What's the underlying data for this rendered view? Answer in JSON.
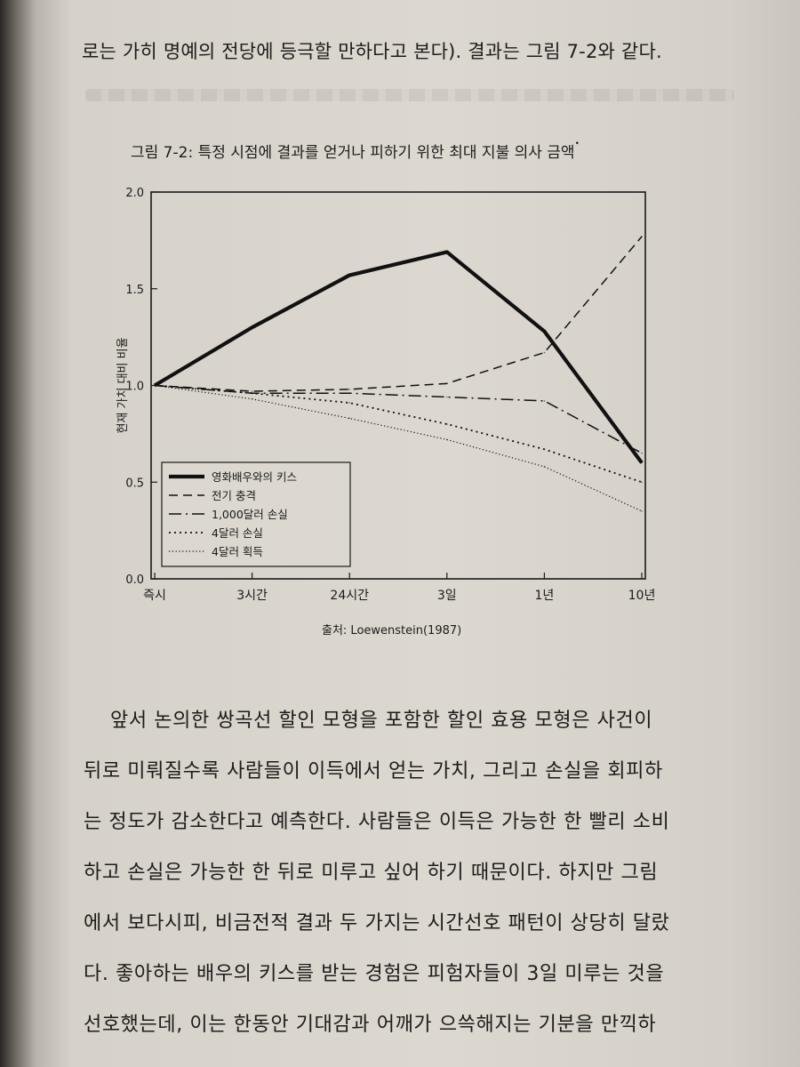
{
  "top_text": "로는 가히 명예의 전당에 등극할 만하다고 본다). 결과는 그림 7-2와 같다.",
  "figure": {
    "title": "그림 7-2: 특정 시점에 결과를 얻거나 피하기 위한 최대 지불 의사 금액",
    "title_mark": "•",
    "source": "출처: Loewenstein(1987)"
  },
  "chart_data": {
    "type": "line",
    "title": "그림 7-2: 특정 시점에 결과를 얻거나 피하기 위한 최대 지불 의사 금액",
    "xlabel": "",
    "ylabel": "현재 가치 대비 비율",
    "categories": [
      "즉시",
      "3시간",
      "24시간",
      "3일",
      "1년",
      "10년"
    ],
    "ylim": [
      0,
      2.0
    ],
    "yticks": [
      "0.0",
      "0.5",
      "1.0",
      "1.5",
      "2.0"
    ],
    "grid": false,
    "legend_position": "bottom-left",
    "series": [
      {
        "name": "영화배우와의 키스",
        "style": "thick-solid",
        "values": [
          1.0,
          1.3,
          1.57,
          1.69,
          1.28,
          0.6
        ]
      },
      {
        "name": "전기 충격",
        "style": "dashed",
        "values": [
          1.0,
          0.97,
          0.98,
          1.01,
          1.17,
          1.77
        ]
      },
      {
        "name": "1,000달러 손실",
        "style": "dash-dot",
        "values": [
          1.0,
          0.96,
          0.96,
          0.94,
          0.92,
          0.65
        ]
      },
      {
        "name": "4달러 손실",
        "style": "dotted",
        "values": [
          1.0,
          0.96,
          0.91,
          0.8,
          0.67,
          0.5
        ]
      },
      {
        "name": "4달러 획득",
        "style": "fine-dotted",
        "values": [
          1.0,
          0.93,
          0.83,
          0.72,
          0.58,
          0.35
        ]
      }
    ]
  },
  "body_lines": [
    "앞서 논의한 쌍곡선 할인 모형을 포함한 할인 효용 모형은 사건이",
    "뒤로 미뤄질수록 사람들이 이득에서 얻는 가치, 그리고 손실을 회피하",
    "는 정도가 감소한다고 예측한다. 사람들은 이득은 가능한 한 빨리 소비",
    "하고 손실은 가능한 한 뒤로 미루고 싶어 하기 때문이다. 하지만 그림",
    "에서 보다시피, 비금전적 결과 두 가지는 시간선호 패턴이 상당히 달랐",
    "다. 좋아하는 배우의 키스를 받는 경험은 피험자들이 3일 미루는 것을",
    "선호했는데, 이는 한동안 기대감과 어깨가 으쓱해지는 기분을 만끽하"
  ]
}
